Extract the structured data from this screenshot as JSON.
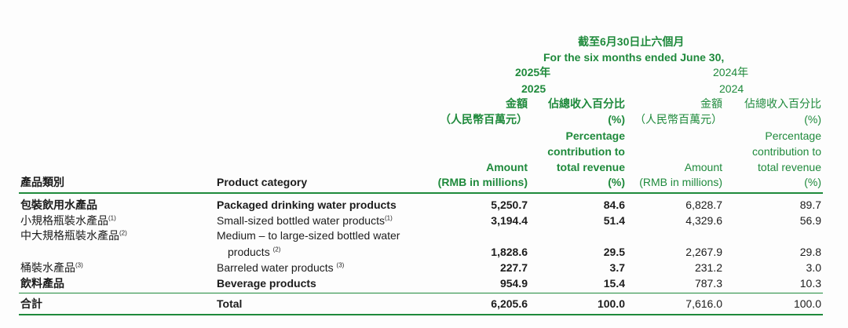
{
  "header": {
    "period_zh": "截至6月30日止六個月",
    "period_en": "For the six months ended June 30,",
    "year2025_zh": "2025年",
    "year2025_en": "2025",
    "year2024_zh": "2024年",
    "year2024_en": "2024",
    "amount_zh": "金額",
    "amount_unit_zh": "（人民幣百萬元）",
    "pct_zh": "佔總收入百分比",
    "pct_zh_unit": "(%)",
    "pct_en_1": "Percentage",
    "pct_en_2": "contribution to",
    "pct_en_3": "total revenue",
    "pct_en_4": "(%)",
    "amount_en_1": "Amount",
    "amount_en_2": "(RMB in millions)",
    "col_category_zh": "產品類別",
    "col_category_en": "Product category"
  },
  "rows": [
    {
      "zh": "包裝飲用水產品",
      "en": "Packaged drinking water products",
      "a25": "5,250.7",
      "p25": "84.6",
      "a24": "6,828.7",
      "p24": "89.7",
      "bold": true
    },
    {
      "zh": "小規格瓶裝水產品",
      "zh_note": "(1)",
      "en": "Small-sized bottled water products",
      "en_note": "(1)",
      "a25": "3,194.4",
      "p25": "51.4",
      "a24": "4,329.6",
      "p24": "56.9",
      "bold": false
    },
    {
      "zh": "中大規格瓶裝水產品",
      "zh_note": "(2)",
      "en": "Medium – to large-sized bottled water",
      "en2": "products",
      "en_note": "(2)",
      "a25": "1,828.6",
      "p25": "29.5",
      "a24": "2,267.9",
      "p24": "29.8",
      "bold": false
    },
    {
      "zh": "桶裝水產品",
      "zh_note": "(3)",
      "en": "Barreled water products",
      "en_note": "(3)",
      "a25": "227.7",
      "p25": "3.7",
      "a24": "231.2",
      "p24": "3.0",
      "bold": false
    },
    {
      "zh": "飲料產品",
      "en": "Beverage products",
      "a25": "954.9",
      "p25": "15.4",
      "a24": "787.3",
      "p24": "10.3",
      "bold": true
    }
  ],
  "total": {
    "zh": "合計",
    "en": "Total",
    "a25": "6,205.6",
    "p25": "100.0",
    "a24": "7,616.0",
    "p24": "100.0"
  }
}
